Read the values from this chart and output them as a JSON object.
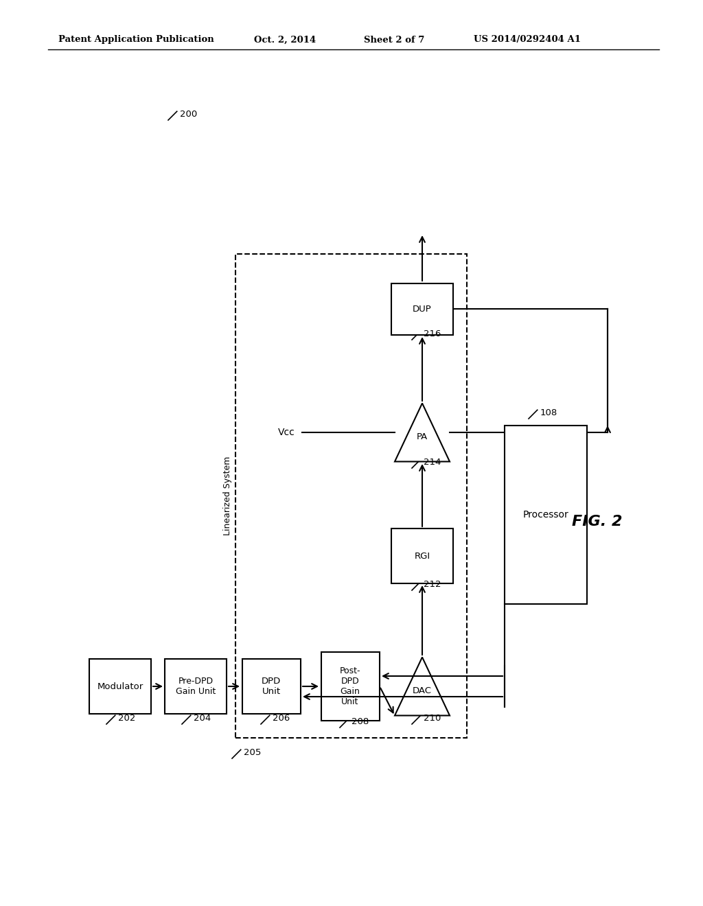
{
  "bg_color": "#ffffff",
  "line_color": "#000000",
  "header_text": "Patent Application Publication",
  "header_date": "Oct. 2, 2014",
  "header_sheet": "Sheet 2 of 7",
  "header_patent": "US 2014/0292404 A1",
  "fig_label": "FIG. 2",
  "diagram_num": "200",
  "system_text": "Linearized System",
  "system_num": "205",
  "vcc_label": "Vcc",
  "proc_num": "108",
  "blocks": {
    "modulator": {
      "label": "Modulator",
      "num": "202"
    },
    "pre_dpd": {
      "label": "Pre-DPD\nGain Unit",
      "num": "204"
    },
    "dpd": {
      "label": "DPD\nUnit",
      "num": "206"
    },
    "post_dpd": {
      "label": "Post-\nDPD\nGain\nUnit",
      "num": "208"
    },
    "dac": {
      "label": "DAC",
      "num": "210"
    },
    "rgi": {
      "label": "RGI",
      "num": "212"
    },
    "pa": {
      "label": "PA",
      "num": "214"
    },
    "dup": {
      "label": "DUP",
      "num": "216"
    },
    "processor": {
      "label": "Processor",
      "num": "108"
    }
  }
}
